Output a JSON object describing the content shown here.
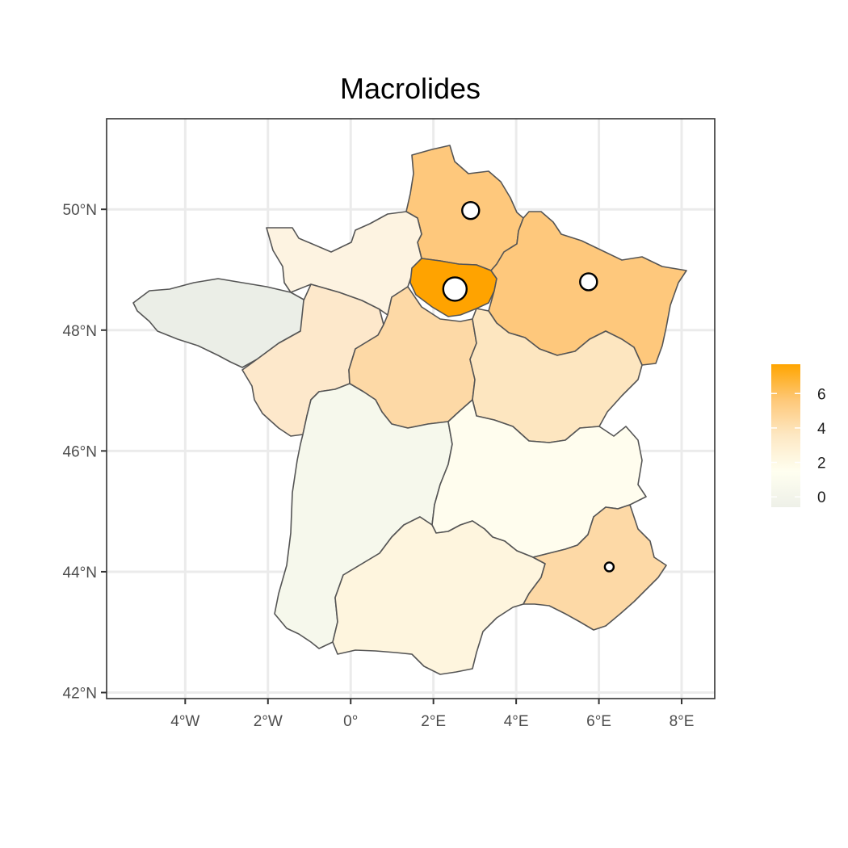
{
  "chart_data": {
    "type": "choropleth-map",
    "title": "Macrolides",
    "xlim": [
      -5.9,
      8.8
    ],
    "ylim": [
      41.9,
      51.5
    ],
    "x_ticks": [
      {
        "value": -4,
        "label": "4°W"
      },
      {
        "value": -2,
        "label": "2°W"
      },
      {
        "value": 0,
        "label": "0°"
      },
      {
        "value": 2,
        "label": "2°E"
      },
      {
        "value": 4,
        "label": "4°E"
      },
      {
        "value": 6,
        "label": "6°E"
      },
      {
        "value": 8,
        "label": "8°E"
      }
    ],
    "y_ticks": [
      {
        "value": 42,
        "label": "42°N"
      },
      {
        "value": 44,
        "label": "44°N"
      },
      {
        "value": 46,
        "label": "46°N"
      },
      {
        "value": 48,
        "label": "48°N"
      },
      {
        "value": 50,
        "label": "50°N"
      }
    ],
    "grid": true,
    "legend": {
      "position": "right",
      "range": [
        -0.6,
        7.7
      ],
      "ticks": [
        0,
        2,
        4,
        6
      ],
      "colors": [
        "#eef0e8",
        "#fffff0",
        "#fde8c4",
        "#fec878",
        "#ffa500"
      ]
    },
    "regions": [
      {
        "value": 3.6,
        "color": "#fec87c"
      },
      {
        "value": 1.0,
        "color": "#fdf3e1"
      },
      {
        "value": -0.4,
        "color": "#ebeee7"
      },
      {
        "value": 1.6,
        "color": "#fde8cb"
      },
      {
        "value": 3.0,
        "color": "#fdd9a6"
      },
      {
        "value": 7.6,
        "color": "#ffa300"
      },
      {
        "value": 3.6,
        "color": "#fec87c"
      },
      {
        "value": 2.0,
        "color": "#fde6c0"
      },
      {
        "value": 0.0,
        "color": "#f6f8ec"
      },
      {
        "value": 0.4,
        "color": "#fffdee"
      },
      {
        "value": 1.0,
        "color": "#fef5de"
      },
      {
        "value": 3.0,
        "color": "#fdd9a6"
      }
    ],
    "points": [
      {
        "lon": 2.9,
        "lat": 49.98,
        "size": "medium"
      },
      {
        "lon": 2.52,
        "lat": 48.68,
        "size": "large"
      },
      {
        "lon": 5.75,
        "lat": 48.8,
        "size": "medium"
      },
      {
        "lon": 6.25,
        "lat": 44.08,
        "size": "small"
      }
    ]
  }
}
